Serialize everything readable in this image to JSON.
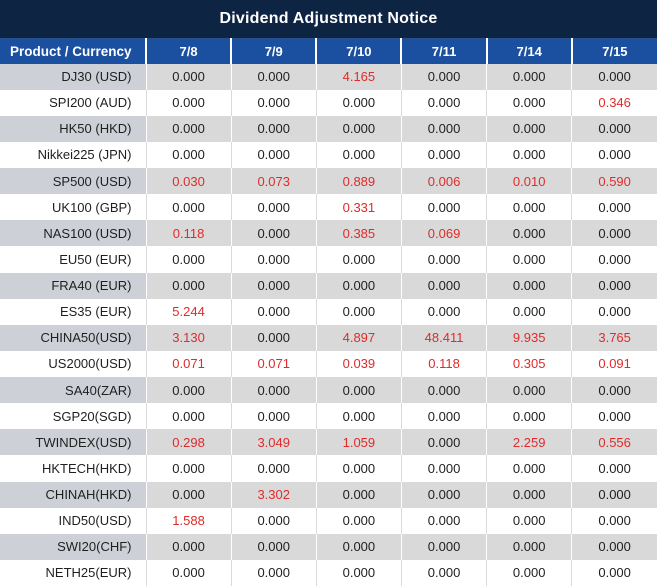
{
  "title": "Dividend Adjustment Notice",
  "colors": {
    "title-bg": "#0d2443",
    "header-bg": "#1b4fa0",
    "header-text": "#ffffff",
    "row-alt-bg": "#d9d9d9",
    "label-alt-bg": "#cdd1d7",
    "value-text": "#1f1f1f",
    "nonzero-red": "#e02b2b"
  },
  "table": {
    "product_header": "Product / Currency",
    "date_headers": [
      "7/8",
      "7/9",
      "7/10",
      "7/11",
      "7/14",
      "7/15"
    ],
    "zero_value": "0.000",
    "rows": [
      {
        "product": "DJ30 (USD)",
        "values": [
          "0.000",
          "0.000",
          "4.165",
          "0.000",
          "0.000",
          "0.000"
        ]
      },
      {
        "product": "SPI200 (AUD)",
        "values": [
          "0.000",
          "0.000",
          "0.000",
          "0.000",
          "0.000",
          "0.346"
        ]
      },
      {
        "product": "HK50 (HKD)",
        "values": [
          "0.000",
          "0.000",
          "0.000",
          "0.000",
          "0.000",
          "0.000"
        ]
      },
      {
        "product": "Nikkei225 (JPN)",
        "values": [
          "0.000",
          "0.000",
          "0.000",
          "0.000",
          "0.000",
          "0.000"
        ]
      },
      {
        "product": "SP500 (USD)",
        "values": [
          "0.030",
          "0.073",
          "0.889",
          "0.006",
          "0.010",
          "0.590"
        ]
      },
      {
        "product": "UK100 (GBP)",
        "values": [
          "0.000",
          "0.000",
          "0.331",
          "0.000",
          "0.000",
          "0.000"
        ]
      },
      {
        "product": "NAS100 (USD)",
        "values": [
          "0.118",
          "0.000",
          "0.385",
          "0.069",
          "0.000",
          "0.000"
        ]
      },
      {
        "product": "EU50 (EUR)",
        "values": [
          "0.000",
          "0.000",
          "0.000",
          "0.000",
          "0.000",
          "0.000"
        ]
      },
      {
        "product": "FRA40 (EUR)",
        "values": [
          "0.000",
          "0.000",
          "0.000",
          "0.000",
          "0.000",
          "0.000"
        ]
      },
      {
        "product": "ES35 (EUR)",
        "values": [
          "5.244",
          "0.000",
          "0.000",
          "0.000",
          "0.000",
          "0.000"
        ]
      },
      {
        "product": "CHINA50(USD)",
        "values": [
          "3.130",
          "0.000",
          "4.897",
          "48.411",
          "9.935",
          "3.765"
        ]
      },
      {
        "product": "US2000(USD)",
        "values": [
          "0.071",
          "0.071",
          "0.039",
          "0.118",
          "0.305",
          "0.091"
        ]
      },
      {
        "product": "SA40(ZAR)",
        "values": [
          "0.000",
          "0.000",
          "0.000",
          "0.000",
          "0.000",
          "0.000"
        ]
      },
      {
        "product": "SGP20(SGD)",
        "values": [
          "0.000",
          "0.000",
          "0.000",
          "0.000",
          "0.000",
          "0.000"
        ]
      },
      {
        "product": "TWINDEX(USD)",
        "values": [
          "0.298",
          "3.049",
          "1.059",
          "0.000",
          "2.259",
          "0.556"
        ]
      },
      {
        "product": "HKTECH(HKD)",
        "values": [
          "0.000",
          "0.000",
          "0.000",
          "0.000",
          "0.000",
          "0.000"
        ]
      },
      {
        "product": "CHINAH(HKD)",
        "values": [
          "0.000",
          "3.302",
          "0.000",
          "0.000",
          "0.000",
          "0.000"
        ]
      },
      {
        "product": "IND50(USD)",
        "values": [
          "1.588",
          "0.000",
          "0.000",
          "0.000",
          "0.000",
          "0.000"
        ]
      },
      {
        "product": "SWI20(CHF)",
        "values": [
          "0.000",
          "0.000",
          "0.000",
          "0.000",
          "0.000",
          "0.000"
        ]
      },
      {
        "product": "NETH25(EUR)",
        "values": [
          "0.000",
          "0.000",
          "0.000",
          "0.000",
          "0.000",
          "0.000"
        ]
      }
    ]
  }
}
